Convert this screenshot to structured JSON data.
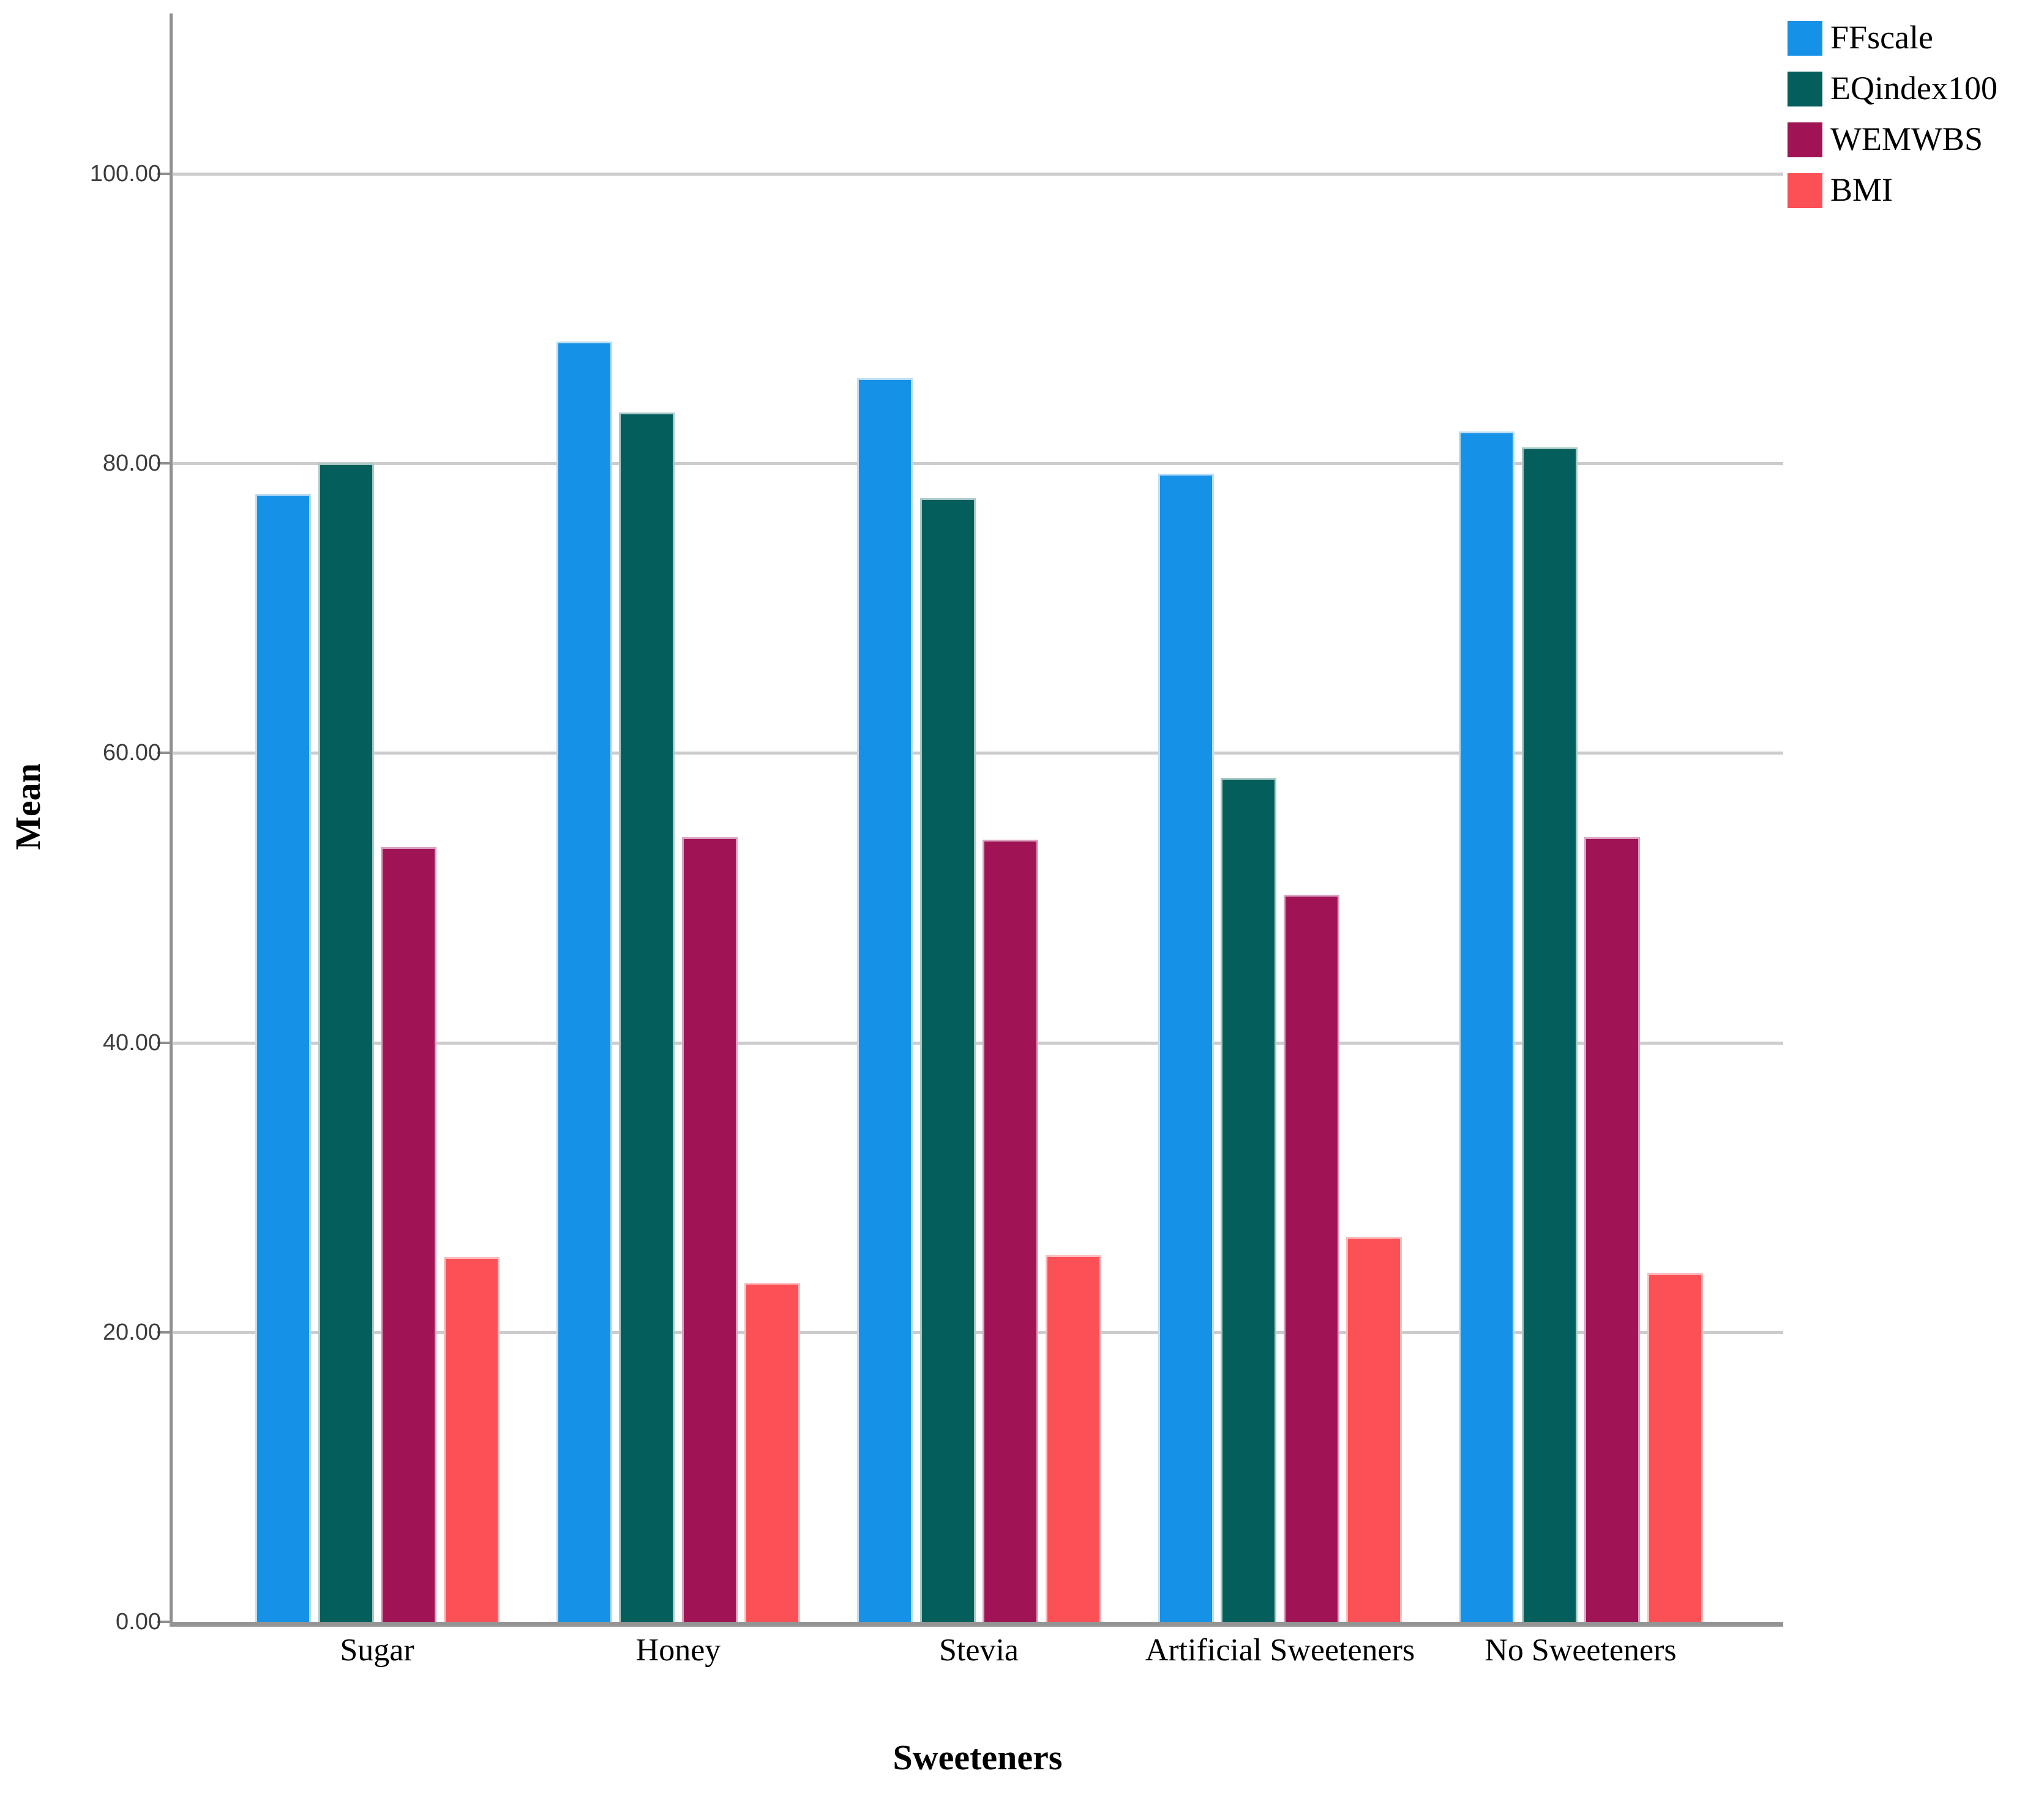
{
  "chart_data": {
    "type": "bar",
    "title": "",
    "xlabel": "Sweeteners",
    "ylabel": "Mean",
    "categories": [
      "Sugar",
      "Honey",
      "Stevia",
      "Artificial Sweeteners",
      "No Sweeteners"
    ],
    "series": [
      {
        "name": "FFscale",
        "color": "#1591E8",
        "edge_color": "#BBDDF5",
        "values": [
          77.9,
          88.4,
          85.9,
          79.3,
          82.2
        ]
      },
      {
        "name": "EQindex100",
        "color": "#045E5B",
        "edge_color": "#A8C8C6",
        "values": [
          80.0,
          83.5,
          77.6,
          58.3,
          81.1
        ]
      },
      {
        "name": "WEMWBS",
        "color": "#A01456",
        "edge_color": "#D9A3C0",
        "values": [
          53.5,
          54.2,
          54.0,
          50.2,
          54.2
        ]
      },
      {
        "name": "BMI",
        "color": "#FB5156",
        "edge_color": "#FFBCBE",
        "values": [
          25.2,
          23.4,
          25.3,
          26.6,
          24.1
        ]
      }
    ],
    "ylim": [
      0,
      100
    ],
    "yticks": [
      {
        "label": "0.00",
        "value": 0
      },
      {
        "label": "20.00",
        "value": 20
      },
      {
        "label": "40.00",
        "value": 40
      },
      {
        "label": "60.00",
        "value": 60
      },
      {
        "label": "80.00",
        "value": 80
      },
      {
        "label": "100.00",
        "value": 100
      }
    ],
    "grid": true,
    "legend_position": "top-right",
    "grid_color": "#cccccc",
    "axis_color": "#8f8f8f",
    "tick_label_color": "#3d3d3d"
  }
}
